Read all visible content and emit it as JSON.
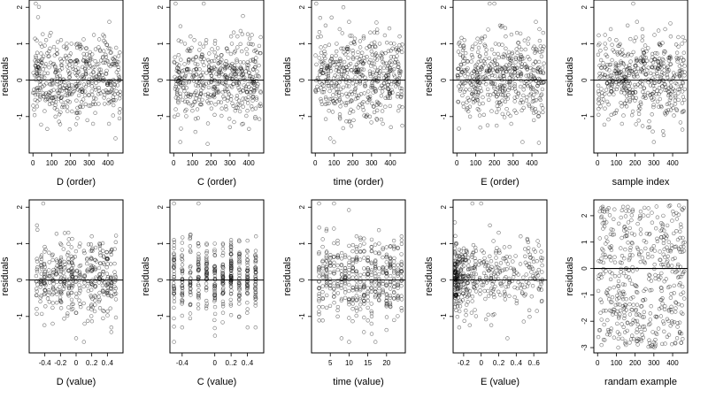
{
  "chart_data": [
    {
      "type": "scatter",
      "xlabel": "D (order)",
      "ylabel": "residuals",
      "xlim": [
        -20,
        480
      ],
      "ylim": [
        -2.0,
        2.2
      ],
      "xticks": [
        0,
        100,
        200,
        300,
        400
      ],
      "yticks": [
        -1,
        0,
        1,
        2
      ],
      "hline": 0,
      "gen": {
        "mode": "order",
        "seed": 11,
        "n": 470,
        "noise": 0.55,
        "ymin": -1.75,
        "ymax": 2.1
      },
      "x": [
        15,
        40,
        70,
        95,
        120,
        150,
        180,
        205,
        230,
        260,
        290,
        320,
        350,
        380,
        410,
        440,
        455
      ],
      "y": [
        2.1,
        1.0,
        1.1,
        1.3,
        -1.0,
        1.1,
        1.0,
        1.0,
        -0.9,
        0.9,
        -1.1,
        -1.2,
        0.9,
        1.2,
        -0.6,
        -1.6,
        0.5
      ]
    },
    {
      "type": "scatter",
      "xlabel": "C (order)",
      "ylabel": "residuals",
      "xlim": [
        -20,
        480
      ],
      "ylim": [
        -2.0,
        2.2
      ],
      "xticks": [
        0,
        100,
        200,
        300,
        400
      ],
      "yticks": [
        -1,
        0,
        1,
        2
      ],
      "hline": 0,
      "gen": {
        "mode": "order",
        "seed": 23,
        "n": 470,
        "noise": 0.5,
        "ymin": -1.75,
        "ymax": 2.1
      },
      "x": [
        10,
        35,
        60,
        90,
        110,
        140,
        160,
        190,
        220,
        250,
        280,
        310,
        340,
        370,
        400,
        430,
        455
      ],
      "y": [
        2.1,
        -1.7,
        1.0,
        1.2,
        1.1,
        1.0,
        2.1,
        0.5,
        1.0,
        0.5,
        -0.8,
        1.0,
        0.9,
        -1.2,
        1.0,
        0.8,
        -0.7
      ]
    },
    {
      "type": "scatter",
      "xlabel": "time (order)",
      "ylabel": "residuals",
      "xlim": [
        -20,
        480
      ],
      "ylim": [
        -2.0,
        2.2
      ],
      "xticks": [
        0,
        100,
        200,
        300,
        400
      ],
      "yticks": [
        -1,
        0,
        1,
        2
      ],
      "hline": 0,
      "gen": {
        "mode": "order",
        "seed": 37,
        "n": 470,
        "noise": 0.55,
        "ymin": -1.75,
        "ymax": 2.1
      },
      "x": [
        5,
        30,
        55,
        80,
        100,
        130,
        150,
        180,
        210,
        240,
        270,
        300,
        330,
        360,
        390,
        420,
        450
      ],
      "y": [
        2.1,
        1.2,
        1.5,
        -1.6,
        -1.7,
        1.4,
        2.0,
        1.6,
        1.0,
        0.9,
        -1.0,
        1.0,
        1.3,
        -1.2,
        0.8,
        1.0,
        1.2
      ]
    },
    {
      "type": "scatter",
      "xlabel": "E (order)",
      "ylabel": "residuals",
      "xlim": [
        -20,
        480
      ],
      "ylim": [
        -2.0,
        2.2
      ],
      "xticks": [
        0,
        100,
        200,
        300,
        400
      ],
      "yticks": [
        -1,
        0,
        1,
        2
      ],
      "hline": 0,
      "gen": {
        "mode": "order",
        "seed": 41,
        "n": 470,
        "noise": 0.55,
        "ymin": -1.75,
        "ymax": 2.1
      },
      "x": [
        10,
        40,
        70,
        100,
        125,
        150,
        175,
        200,
        230,
        260,
        290,
        320,
        350,
        380,
        410,
        440,
        460
      ],
      "y": [
        1.0,
        1.1,
        -1.0,
        1.0,
        -1.3,
        1.2,
        2.1,
        2.1,
        1.5,
        1.2,
        -1.2,
        1.3,
        -1.7,
        1.0,
        -1.1,
        1.4,
        1.3
      ]
    },
    {
      "type": "scatter",
      "xlabel": "sample index",
      "ylabel": "residuals",
      "xlim": [
        -20,
        480
      ],
      "ylim": [
        -2.0,
        2.2
      ],
      "xticks": [
        0,
        100,
        200,
        300,
        400
      ],
      "yticks": [
        -1,
        0,
        1,
        2
      ],
      "hline": 0,
      "gen": {
        "mode": "order",
        "seed": 53,
        "n": 470,
        "noise": 0.55,
        "ymin": -1.75,
        "ymax": 2.1
      },
      "x": [
        10,
        40,
        70,
        100,
        130,
        160,
        190,
        210,
        240,
        270,
        300,
        330,
        360,
        390,
        420,
        450
      ],
      "y": [
        1.0,
        1.0,
        1.4,
        1.1,
        -1.2,
        1.5,
        2.1,
        1.6,
        1.2,
        -1.3,
        -1.7,
        1.0,
        1.4,
        1.2,
        -0.8,
        1.0
      ]
    },
    {
      "type": "scatter",
      "xlabel": "D (value)",
      "ylabel": "residuals",
      "xlim": [
        -0.6,
        0.6
      ],
      "ylim": [
        -2.0,
        2.2
      ],
      "xticks": [
        -0.4,
        -0.2,
        0.0,
        0.2,
        0.4
      ],
      "yticks": [
        -1,
        0,
        1,
        2
      ],
      "hline": 0,
      "gen": {
        "mode": "columns",
        "seed": 61,
        "n": 420,
        "noise": 0.5,
        "ymin": -1.75,
        "ymax": 2.1,
        "xs": [
          -0.5,
          -0.45,
          -0.4,
          -0.35,
          -0.3,
          -0.25,
          -0.2,
          -0.15,
          -0.1,
          -0.05,
          0.0,
          0.05,
          0.1,
          0.15,
          0.2,
          0.25,
          0.3,
          0.35,
          0.4,
          0.45,
          0.5
        ],
        "jitter": 0.012
      },
      "x": [
        -0.5,
        -0.42,
        -0.3,
        -0.2,
        -0.1,
        0.0,
        0.05,
        0.1,
        0.2,
        0.3,
        0.45
      ],
      "y": [
        1.5,
        2.1,
        -1.2,
        1.0,
        1.3,
        -1.6,
        1.0,
        -1.7,
        1.2,
        1.0,
        -1.3
      ]
    },
    {
      "type": "scatter",
      "xlabel": "C (value)",
      "ylabel": "residuals",
      "xlim": [
        -0.55,
        0.6
      ],
      "ylim": [
        -2.0,
        2.2
      ],
      "xticks": [
        -0.4,
        0.0,
        0.2,
        0.4
      ],
      "yticks": [
        -1,
        0,
        1,
        2
      ],
      "hline": 0,
      "gen": {
        "mode": "columns",
        "seed": 71,
        "n": 430,
        "noise": 0.5,
        "ymin": -1.75,
        "ymax": 2.1,
        "xs": [
          -0.5,
          -0.4,
          -0.3,
          -0.2,
          -0.1,
          0.0,
          0.1,
          0.2,
          0.3,
          0.4,
          0.5
        ],
        "jitter": 0.004
      },
      "x": [
        -0.5,
        -0.5,
        -0.4,
        -0.2,
        -0.1,
        0.0,
        0.1,
        0.2,
        0.3,
        0.5
      ],
      "y": [
        2.1,
        -1.7,
        -1.3,
        2.1,
        1.0,
        1.0,
        1.0,
        1.1,
        -1.0,
        -1.3
      ]
    },
    {
      "type": "scatter",
      "xlabel": "time (value)",
      "ylabel": "residuals",
      "xlim": [
        0,
        25
      ],
      "ylim": [
        -2.0,
        2.2
      ],
      "xticks": [
        5,
        10,
        15,
        20
      ],
      "yticks": [
        -1,
        0,
        1,
        2
      ],
      "hline": 0,
      "gen": {
        "mode": "columns",
        "seed": 83,
        "n": 430,
        "noise": 0.55,
        "ymin": -1.75,
        "ymax": 2.1,
        "xs": [
          2,
          3,
          4,
          5,
          6,
          7,
          8,
          9,
          10,
          11,
          12,
          13,
          14,
          15,
          16,
          17,
          18,
          19,
          20,
          21,
          22,
          23,
          24
        ],
        "jitter": 0.05
      },
      "x": [
        2,
        4,
        6,
        8,
        10,
        12,
        14,
        16,
        18,
        20,
        22,
        24
      ],
      "y": [
        2.1,
        1.4,
        2.1,
        -1.6,
        -1.7,
        1.2,
        1.0,
        -1.2,
        1.0,
        0.9,
        -1.1,
        1.2
      ]
    },
    {
      "type": "scatter",
      "xlabel": "E (value)",
      "ylabel": "residuals",
      "xlim": [
        -0.32,
        0.75
      ],
      "ylim": [
        -2.0,
        2.2
      ],
      "xticks": [
        -0.2,
        0.0,
        0.2,
        0.4,
        0.6
      ],
      "yticks": [
        -1,
        0,
        1,
        2
      ],
      "hline": 0,
      "gen": {
        "mode": "skew",
        "seed": 97,
        "n": 430,
        "noise": 0.5,
        "ymin": -1.75,
        "ymax": 2.1,
        "xmin": -0.3,
        "xmax": 0.7
      },
      "x": [
        -0.28,
        -0.25,
        -0.1,
        0.0,
        0.1,
        0.2,
        0.3,
        0.45,
        0.6,
        0.7
      ],
      "y": [
        1.0,
        -1.3,
        2.1,
        2.1,
        1.5,
        1.3,
        -1.6,
        1.2,
        0.5,
        0.6
      ]
    },
    {
      "type": "scatter",
      "xlabel": "randam example",
      "ylabel": "residuals",
      "xlim": [
        -20,
        480
      ],
      "ylim": [
        -3.2,
        2.6
      ],
      "xticks": [
        0,
        100,
        200,
        300,
        400
      ],
      "yticks": [
        -3,
        -2,
        -1,
        0,
        1,
        2
      ],
      "hline": 0,
      "gen": {
        "mode": "uniform",
        "seed": 109,
        "n": 470,
        "noise": 1.0,
        "ymin": -3.0,
        "ymax": 2.4
      },
      "x": [
        20,
        60,
        110,
        130,
        200,
        250,
        300,
        350,
        380,
        420,
        450
      ],
      "y": [
        2.3,
        -2.4,
        -3.0,
        2.2,
        -2.0,
        2.3,
        -2.8,
        2.0,
        -1.6,
        2.1,
        -1.4
      ]
    }
  ]
}
